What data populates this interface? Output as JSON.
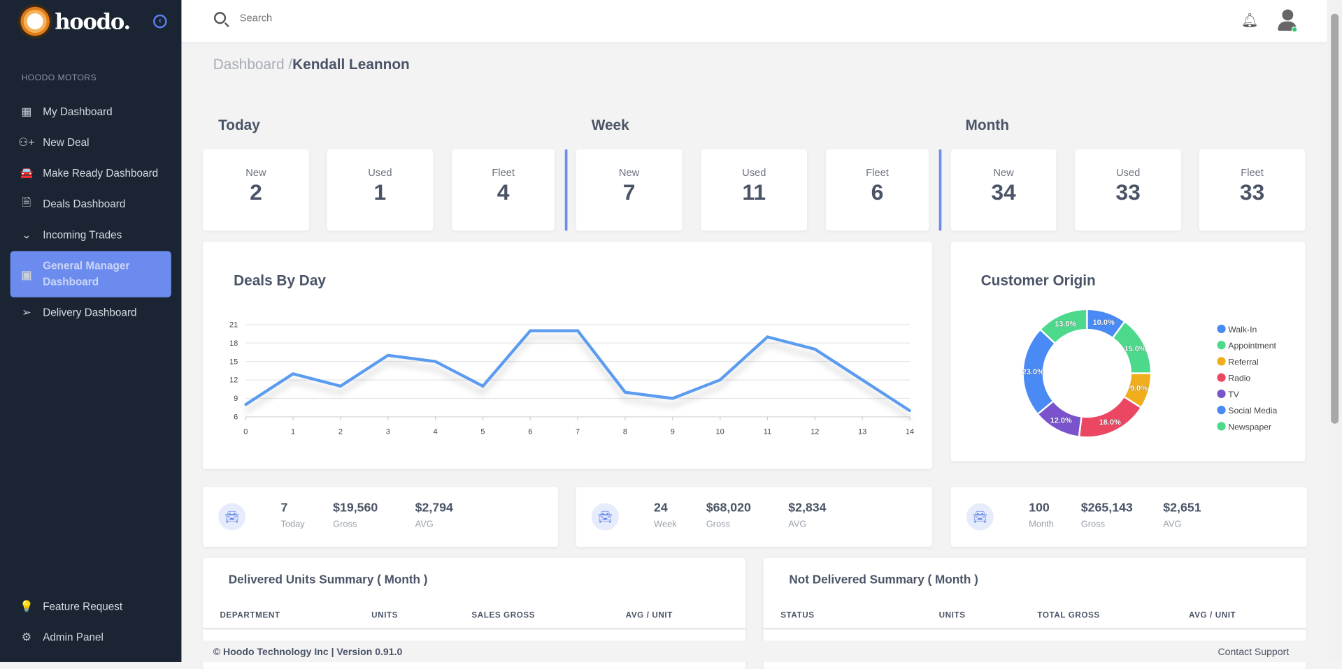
{
  "brand": {
    "name": "hoodo.",
    "logo_letter": "h"
  },
  "sidebar": {
    "section": "HOODO MOTORS",
    "items": [
      {
        "label": "My Dashboard",
        "icon": "dashboard-grid-icon",
        "glyph": "▦"
      },
      {
        "label": "New Deal",
        "icon": "user-plus-icon",
        "glyph": "⚇+"
      },
      {
        "label": "Make Ready Dashboard",
        "icon": "car-icon",
        "glyph": "🚘"
      },
      {
        "label": "Deals Dashboard",
        "icon": "document-icon",
        "glyph": "🗎"
      },
      {
        "label": "Incoming Trades",
        "icon": "double-chevron-down-icon",
        "glyph": "⌄"
      },
      {
        "label": "General Manager Dashboard",
        "icon": "chart-line-icon",
        "glyph": "▣",
        "active": true
      },
      {
        "label": "Delivery Dashboard",
        "icon": "send-icon",
        "glyph": "➢"
      }
    ],
    "bottom": [
      {
        "label": "Feature Request",
        "icon": "lightbulb-icon",
        "glyph": "💡"
      },
      {
        "label": "Admin Panel",
        "icon": "gear-icon",
        "glyph": "⚙"
      }
    ]
  },
  "topbar": {
    "search_placeholder": "Search"
  },
  "breadcrumb": {
    "root": "Dashboard /",
    "current": "Kendall Leannon"
  },
  "periods": [
    {
      "title": "Today",
      "stats": [
        {
          "label": "New",
          "value": "2"
        },
        {
          "label": "Used",
          "value": "1"
        },
        {
          "label": "Fleet",
          "value": "4"
        }
      ]
    },
    {
      "title": "Week",
      "stats": [
        {
          "label": "New",
          "value": "7"
        },
        {
          "label": "Used",
          "value": "11"
        },
        {
          "label": "Fleet",
          "value": "6"
        }
      ]
    },
    {
      "title": "Month",
      "stats": [
        {
          "label": "New",
          "value": "34"
        },
        {
          "label": "Used",
          "value": "33"
        },
        {
          "label": "Fleet",
          "value": "33"
        }
      ]
    }
  ],
  "chart_data": [
    {
      "type": "line",
      "title": "Deals By Day",
      "x": [
        0,
        1,
        2,
        3,
        4,
        5,
        6,
        7,
        8,
        9,
        10,
        11,
        12,
        13,
        14
      ],
      "values": [
        8,
        13,
        11,
        16,
        15,
        11,
        20,
        20,
        10,
        9,
        12,
        19,
        17,
        12,
        7
      ],
      "yticks": [
        6,
        9,
        12,
        15,
        18,
        21
      ],
      "ylim": [
        6,
        21
      ],
      "grid": true,
      "color": "#5b9cf0"
    },
    {
      "type": "pie",
      "title": "Customer Origin",
      "donut": true,
      "legend": "right",
      "labels": [
        "Walk-In",
        "Appointment",
        "Referral",
        "Radio",
        "TV",
        "Social Media",
        "Newspaper"
      ],
      "values": [
        10,
        15,
        9,
        18,
        12,
        23,
        13
      ],
      "value_labels": [
        "10.0%",
        "15.0%",
        "9.0%",
        "18.0%",
        "12.0%",
        "23.0%",
        "13.0%"
      ],
      "colors": [
        "#4a8af4",
        "#4cd98b",
        "#f0ad1c",
        "#eb4763",
        "#7a52cc",
        "#4a8af4",
        "#4cd98b"
      ]
    }
  ],
  "summaries": [
    {
      "count": "7",
      "count_label": "Today",
      "gross": "$19,560",
      "gross_label": "Gross",
      "avg": "$2,794",
      "avg_label": "AVG"
    },
    {
      "count": "24",
      "count_label": "Week",
      "gross": "$68,020",
      "gross_label": "Gross",
      "avg": "$2,834",
      "avg_label": "AVG"
    },
    {
      "count": "100",
      "count_label": "Month",
      "gross": "$265,143",
      "gross_label": "Gross",
      "avg": "$2,651",
      "avg_label": "AVG"
    }
  ],
  "tables": [
    {
      "title": "Delivered Units Summary ( Month )",
      "columns": [
        "DEPARTMENT",
        "UNITS",
        "SALES GROSS",
        "AVG / UNIT"
      ]
    },
    {
      "title": "Not Delivered Summary ( Month )",
      "columns": [
        "STATUS",
        "UNITS",
        "TOTAL GROSS",
        "AVG / UNIT"
      ]
    }
  ],
  "footer": {
    "copyright": "© Hoodo Technology Inc | Version 0.91.0",
    "support": "Contact Support"
  }
}
